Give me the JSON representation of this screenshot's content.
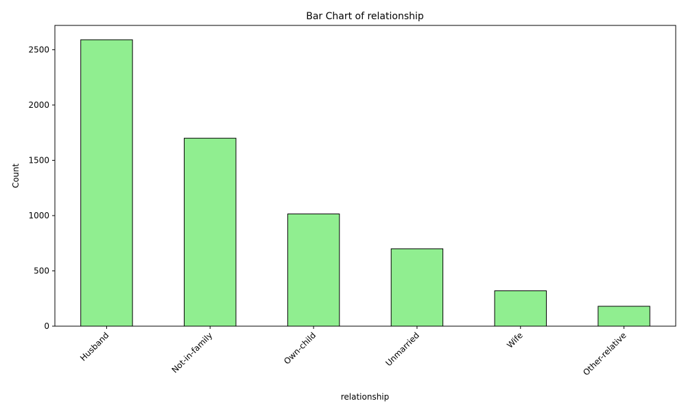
{
  "chart_data": {
    "type": "bar",
    "title": "Bar Chart of relationship",
    "xlabel": "relationship",
    "ylabel": "Count",
    "categories": [
      "Husband",
      "Not-in-family",
      "Own-child",
      "Unmarried",
      "Wife",
      "Other-relative"
    ],
    "values": [
      2590,
      1700,
      1015,
      700,
      320,
      180
    ],
    "ylim": [
      0,
      2720
    ],
    "yticks": [
      0,
      500,
      1000,
      1500,
      2000,
      2500
    ],
    "bar_color": "#90ee90",
    "edge_color": "#000000",
    "grid": false,
    "legend": "none"
  }
}
